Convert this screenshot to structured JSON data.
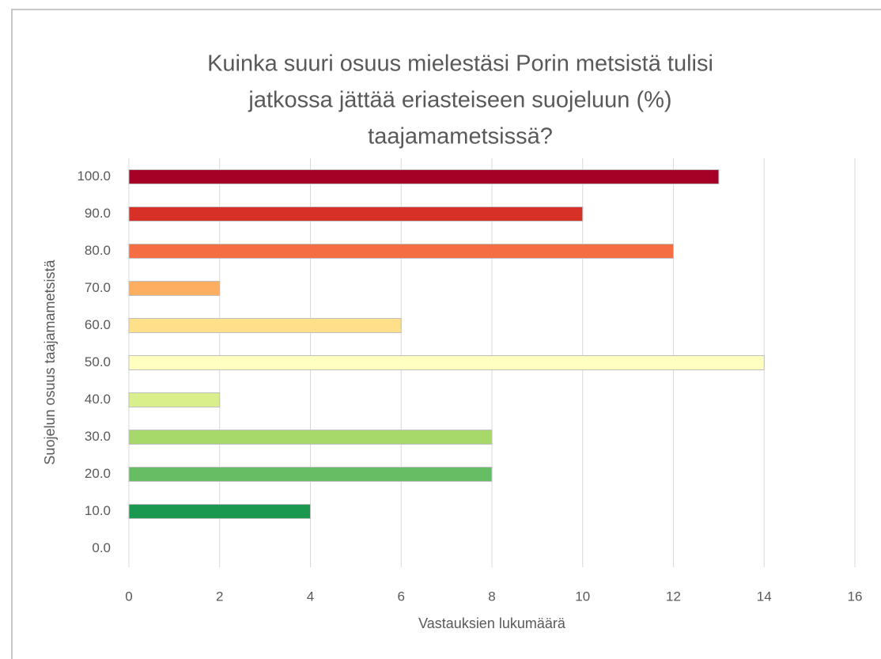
{
  "chart_data": {
    "type": "bar",
    "orientation": "horizontal",
    "title": [
      "Kuinka suuri osuus mielestäsi Porin metsistä tulisi",
      "jatkossa jättää eriasteiseen suojeluun (%)",
      "taajamametsissä?"
    ],
    "x_label": "Vastauksien lukumäärä",
    "y_label": "Suojelun osuus taajamametsistä",
    "categories": [
      "0.0",
      "10.0",
      "20.0",
      "30.0",
      "40.0",
      "50.0",
      "60.0",
      "70.0",
      "80.0",
      "90.0",
      "100.0"
    ],
    "values": [
      0,
      4,
      8,
      8,
      2,
      14,
      6,
      2,
      12,
      10,
      13
    ],
    "colors": [
      "#006837",
      "#1a9850",
      "#66bd63",
      "#a6d96a",
      "#d9ef8b",
      "#ffffbf",
      "#fee08b",
      "#fdae61",
      "#f46d43",
      "#d73027",
      "#a50026"
    ],
    "xlim": [
      0,
      16
    ],
    "xticks": [
      0,
      2,
      4,
      6,
      8,
      10,
      12,
      14,
      16
    ],
    "grid": true
  }
}
